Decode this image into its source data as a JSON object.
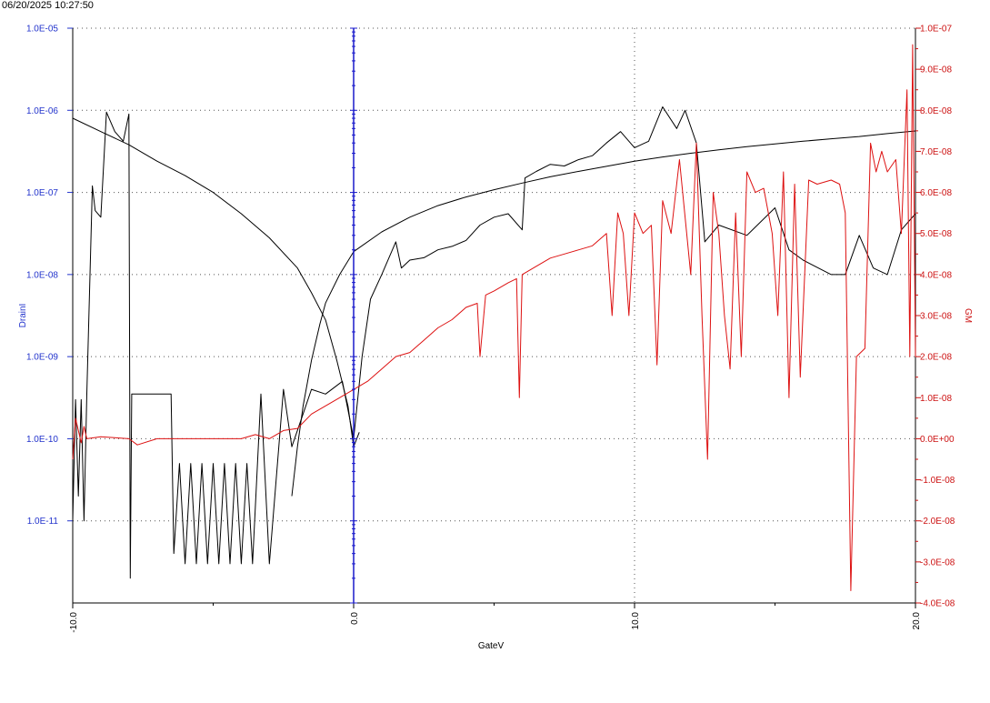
{
  "timestamp": "06/20/2025 10:27:50",
  "chart_data": {
    "type": "line",
    "title": "",
    "xlabel": "GateV",
    "ylabel_left": "DrainI",
    "ylabel_right": "GM",
    "xlim": [
      -10,
      20
    ],
    "ylim_left": [
      1e-12,
      1e-05
    ],
    "ylim_right": [
      -4e-08,
      1e-07
    ],
    "left_scale": "log",
    "right_scale": "linear",
    "grid": true,
    "colors": {
      "left_axis": "#2233cc",
      "right_axis": "#cc1111",
      "drain_curves": "#000000",
      "gm": "#dd1111",
      "cursor": "#1a1acc"
    },
    "x_ticks": [
      {
        "value": -10,
        "label": "-10.0"
      },
      {
        "value": 0,
        "label": "0.0"
      },
      {
        "value": 10,
        "label": "10.0"
      },
      {
        "value": 20,
        "label": "20.0"
      }
    ],
    "y_left_ticks": [
      {
        "value": 1e-05,
        "label": "1.0E-05"
      },
      {
        "value": 1e-06,
        "label": "1.0E-06"
      },
      {
        "value": 1e-07,
        "label": "1.0E-07"
      },
      {
        "value": 1e-08,
        "label": "1.0E-08"
      },
      {
        "value": 1e-09,
        "label": "1.0E-09"
      },
      {
        "value": 1e-10,
        "label": "1.0E-10"
      },
      {
        "value": 1e-11,
        "label": "1.0E-11"
      }
    ],
    "y_right_ticks": [
      {
        "value": 1e-07,
        "label": "1.0E-07"
      },
      {
        "value": 9e-08,
        "label": "9.0E-08"
      },
      {
        "value": 8e-08,
        "label": "8.0E-08"
      },
      {
        "value": 7e-08,
        "label": "7.0E-08"
      },
      {
        "value": 6e-08,
        "label": "6.0E-08"
      },
      {
        "value": 5e-08,
        "label": "5.0E-08"
      },
      {
        "value": 4e-08,
        "label": "4.0E-08"
      },
      {
        "value": 3e-08,
        "label": "3.0E-08"
      },
      {
        "value": 2e-08,
        "label": "2.0E-08"
      },
      {
        "value": 1e-08,
        "label": "1.0E-08"
      },
      {
        "value": 0,
        "label": "0.0E+00"
      },
      {
        "value": -1e-08,
        "label": "-1.0E-08"
      },
      {
        "value": -2e-08,
        "label": "-2.0E-08"
      },
      {
        "value": -3e-08,
        "label": "-3.0E-08"
      },
      {
        "value": -4e-08,
        "label": "-4.0E-08"
      }
    ],
    "cursor_x": 0,
    "series": [
      {
        "axis": "left",
        "color": "#000000",
        "points": [
          [
            -10,
            8e-07
          ],
          [
            -9,
            5.5e-07
          ],
          [
            -8,
            3.8e-07
          ],
          [
            -7,
            2.4e-07
          ],
          [
            -6,
            1.6e-07
          ],
          [
            -5,
            1e-07
          ],
          [
            -4,
            5.5e-08
          ],
          [
            -3,
            2.8e-08
          ],
          [
            -2,
            1.2e-08
          ],
          [
            -1.5,
            6e-09
          ],
          [
            -1,
            2.8e-09
          ],
          [
            -0.6,
            9e-10
          ],
          [
            -0.2,
            2.5e-10
          ],
          [
            0,
            8e-11
          ],
          [
            0.2,
            1.2e-10
          ]
        ]
      },
      {
        "axis": "left",
        "color": "#000000",
        "points": [
          [
            -2.2,
            2e-11
          ],
          [
            -2,
            8e-11
          ],
          [
            -1.8,
            2.5e-10
          ],
          [
            -1.5,
            9e-10
          ],
          [
            -1.2,
            2.5e-09
          ],
          [
            -1,
            4.5e-09
          ],
          [
            -0.5,
            1e-08
          ],
          [
            0,
            1.9e-08
          ],
          [
            1,
            3.3e-08
          ],
          [
            2,
            5e-08
          ],
          [
            3,
            6.9e-08
          ],
          [
            4,
            8.8e-08
          ],
          [
            5,
            1.08e-07
          ],
          [
            6,
            1.3e-07
          ],
          [
            7,
            1.55e-07
          ],
          [
            8,
            1.8e-07
          ],
          [
            9,
            2.08e-07
          ],
          [
            10,
            2.4e-07
          ],
          [
            11,
            2.7e-07
          ],
          [
            12,
            3e-07
          ],
          [
            13,
            3.3e-07
          ],
          [
            14,
            3.6e-07
          ],
          [
            15,
            3.9e-07
          ],
          [
            16,
            4.2e-07
          ],
          [
            17,
            4.5e-07
          ],
          [
            18,
            4.8e-07
          ],
          [
            19,
            5.2e-07
          ],
          [
            20,
            5.6e-07
          ]
        ]
      },
      {
        "axis": "left",
        "color": "#000000",
        "points": [
          [
            -10,
            1e-11
          ],
          [
            -9.9,
            3e-10
          ],
          [
            -9.8,
            2e-11
          ],
          [
            -9.7,
            3e-10
          ],
          [
            -9.6,
            1e-11
          ],
          [
            -9.5,
            3.5e-10
          ],
          [
            -9.3,
            1.2e-07
          ],
          [
            -9.2,
            6e-08
          ],
          [
            -9,
            5e-08
          ],
          [
            -8.8,
            9.5e-07
          ],
          [
            -8.5,
            5.5e-07
          ],
          [
            -8.2,
            4.2e-07
          ],
          [
            -8,
            9e-07
          ],
          [
            -7.95,
            2e-12
          ],
          [
            -7.9,
            3.5e-10
          ],
          [
            -7.5,
            3.5e-10
          ],
          [
            -6.5,
            3.5e-10
          ],
          [
            -6.4,
            4e-12
          ],
          [
            -6.2,
            5e-11
          ],
          [
            -6,
            3e-12
          ],
          [
            -5.8,
            5e-11
          ],
          [
            -5.6,
            3e-12
          ],
          [
            -5.4,
            5e-11
          ],
          [
            -5.2,
            3e-12
          ],
          [
            -5,
            5e-11
          ],
          [
            -4.8,
            3e-12
          ],
          [
            -4.6,
            5e-11
          ],
          [
            -4.4,
            3e-12
          ],
          [
            -4.2,
            5e-11
          ],
          [
            -4,
            3e-12
          ],
          [
            -3.8,
            5e-11
          ],
          [
            -3.6,
            3e-12
          ],
          [
            -3.3,
            3.5e-10
          ],
          [
            -3,
            3e-12
          ],
          [
            -2.5,
            4e-10
          ],
          [
            -2.2,
            8e-11
          ],
          [
            -1.8,
            2e-10
          ],
          [
            -1.5,
            4e-10
          ],
          [
            -1,
            3.5e-10
          ],
          [
            -0.4,
            5e-10
          ],
          [
            0,
            1e-10
          ],
          [
            0.3,
            1e-09
          ],
          [
            0.6,
            5e-09
          ],
          [
            1,
            1e-08
          ],
          [
            1.5,
            2.5e-08
          ],
          [
            1.7,
            1.2e-08
          ],
          [
            2,
            1.5e-08
          ],
          [
            2.5,
            1.6e-08
          ],
          [
            3,
            2e-08
          ],
          [
            3.5,
            2.2e-08
          ],
          [
            4,
            2.6e-08
          ],
          [
            4.5,
            4e-08
          ],
          [
            5,
            5e-08
          ],
          [
            5.5,
            5.5e-08
          ],
          [
            6,
            3.5e-08
          ],
          [
            6.1,
            1.5e-07
          ],
          [
            6.5,
            1.8e-07
          ],
          [
            7,
            2.2e-07
          ],
          [
            7.5,
            2.1e-07
          ],
          [
            8,
            2.5e-07
          ],
          [
            8.5,
            2.8e-07
          ],
          [
            9,
            4e-07
          ],
          [
            9.5,
            5.5e-07
          ],
          [
            10,
            3.5e-07
          ],
          [
            10.5,
            4.2e-07
          ],
          [
            11,
            1.1e-06
          ],
          [
            11.5,
            6e-07
          ],
          [
            11.8,
            1e-06
          ],
          [
            12.2,
            4e-07
          ],
          [
            12.5,
            2.5e-08
          ],
          [
            13,
            4e-08
          ],
          [
            14,
            3e-08
          ],
          [
            15,
            6.5e-08
          ],
          [
            15.5,
            2e-08
          ],
          [
            16,
            1.5e-08
          ],
          [
            17,
            1e-08
          ],
          [
            17.5,
            1e-08
          ],
          [
            18,
            3e-08
          ],
          [
            18.5,
            1.2e-08
          ],
          [
            19,
            1e-08
          ],
          [
            19.5,
            3.5e-08
          ],
          [
            20,
            5.5e-08
          ]
        ]
      },
      {
        "axis": "right",
        "color": "#dd1111",
        "points": [
          [
            -10,
            -5e-09
          ],
          [
            -9.9,
            5e-09
          ],
          [
            -9.7,
            -1e-09
          ],
          [
            -9.6,
            3e-09
          ],
          [
            -9.5,
            0
          ],
          [
            -9,
            5e-10
          ],
          [
            -8,
            0
          ],
          [
            -7.7,
            -1.5e-09
          ],
          [
            -7,
            0
          ],
          [
            -6,
            0
          ],
          [
            -5,
            0
          ],
          [
            -4,
            0
          ],
          [
            -3.5,
            1e-09
          ],
          [
            -3,
            0
          ],
          [
            -2.5,
            2e-09
          ],
          [
            -2,
            2.5e-09
          ],
          [
            -1.5,
            6e-09
          ],
          [
            -1,
            8e-09
          ],
          [
            -0.5,
            1e-08
          ],
          [
            0,
            1.2e-08
          ],
          [
            0.5,
            1.4e-08
          ],
          [
            1,
            1.7e-08
          ],
          [
            1.5,
            2e-08
          ],
          [
            2,
            2.1e-08
          ],
          [
            2.5,
            2.4e-08
          ],
          [
            3,
            2.7e-08
          ],
          [
            3.5,
            2.9e-08
          ],
          [
            4,
            3.2e-08
          ],
          [
            4.4,
            3.3e-08
          ],
          [
            4.5,
            2e-08
          ],
          [
            4.7,
            3.5e-08
          ],
          [
            5,
            3.6e-08
          ],
          [
            5.5,
            3.8e-08
          ],
          [
            5.8,
            3.9e-08
          ],
          [
            5.9,
            1e-08
          ],
          [
            6,
            4e-08
          ],
          [
            6.5,
            4.2e-08
          ],
          [
            7,
            4.4e-08
          ],
          [
            7.5,
            4.5e-08
          ],
          [
            8,
            4.6e-08
          ],
          [
            8.5,
            4.7e-08
          ],
          [
            9,
            5e-08
          ],
          [
            9.2,
            3e-08
          ],
          [
            9.4,
            5.5e-08
          ],
          [
            9.6,
            5e-08
          ],
          [
            9.8,
            3e-08
          ],
          [
            10,
            5.5e-08
          ],
          [
            10.3,
            5e-08
          ],
          [
            10.6,
            5.2e-08
          ],
          [
            10.8,
            1.8e-08
          ],
          [
            11,
            5.8e-08
          ],
          [
            11.3,
            5e-08
          ],
          [
            11.6,
            6.8e-08
          ],
          [
            12,
            4e-08
          ],
          [
            12.2,
            7.2e-08
          ],
          [
            12.4,
            3e-08
          ],
          [
            12.6,
            -5e-09
          ],
          [
            12.8,
            6e-08
          ],
          [
            13,
            5e-08
          ],
          [
            13.2,
            3e-08
          ],
          [
            13.4,
            1.7e-08
          ],
          [
            13.6,
            5.5e-08
          ],
          [
            13.8,
            2e-08
          ],
          [
            14,
            6.5e-08
          ],
          [
            14.3,
            6e-08
          ],
          [
            14.6,
            6.1e-08
          ],
          [
            14.9,
            5e-08
          ],
          [
            15.1,
            3e-08
          ],
          [
            15.3,
            6.5e-08
          ],
          [
            15.5,
            1e-08
          ],
          [
            15.7,
            6.2e-08
          ],
          [
            15.9,
            1.5e-08
          ],
          [
            16.2,
            6.3e-08
          ],
          [
            16.5,
            6.2e-08
          ],
          [
            17,
            6.3e-08
          ],
          [
            17.3,
            6.2e-08
          ],
          [
            17.5,
            5.5e-08
          ],
          [
            17.7,
            -3.7e-08
          ],
          [
            17.9,
            2e-08
          ],
          [
            18.2,
            2.2e-08
          ],
          [
            18.4,
            7.2e-08
          ],
          [
            18.6,
            6.5e-08
          ],
          [
            18.8,
            7e-08
          ],
          [
            19,
            6.5e-08
          ],
          [
            19.3,
            6.8e-08
          ],
          [
            19.5,
            5e-08
          ],
          [
            19.7,
            8.5e-08
          ],
          [
            19.8,
            2e-08
          ],
          [
            19.9,
            9.6e-08
          ],
          [
            20,
            2e-08
          ]
        ]
      }
    ]
  }
}
